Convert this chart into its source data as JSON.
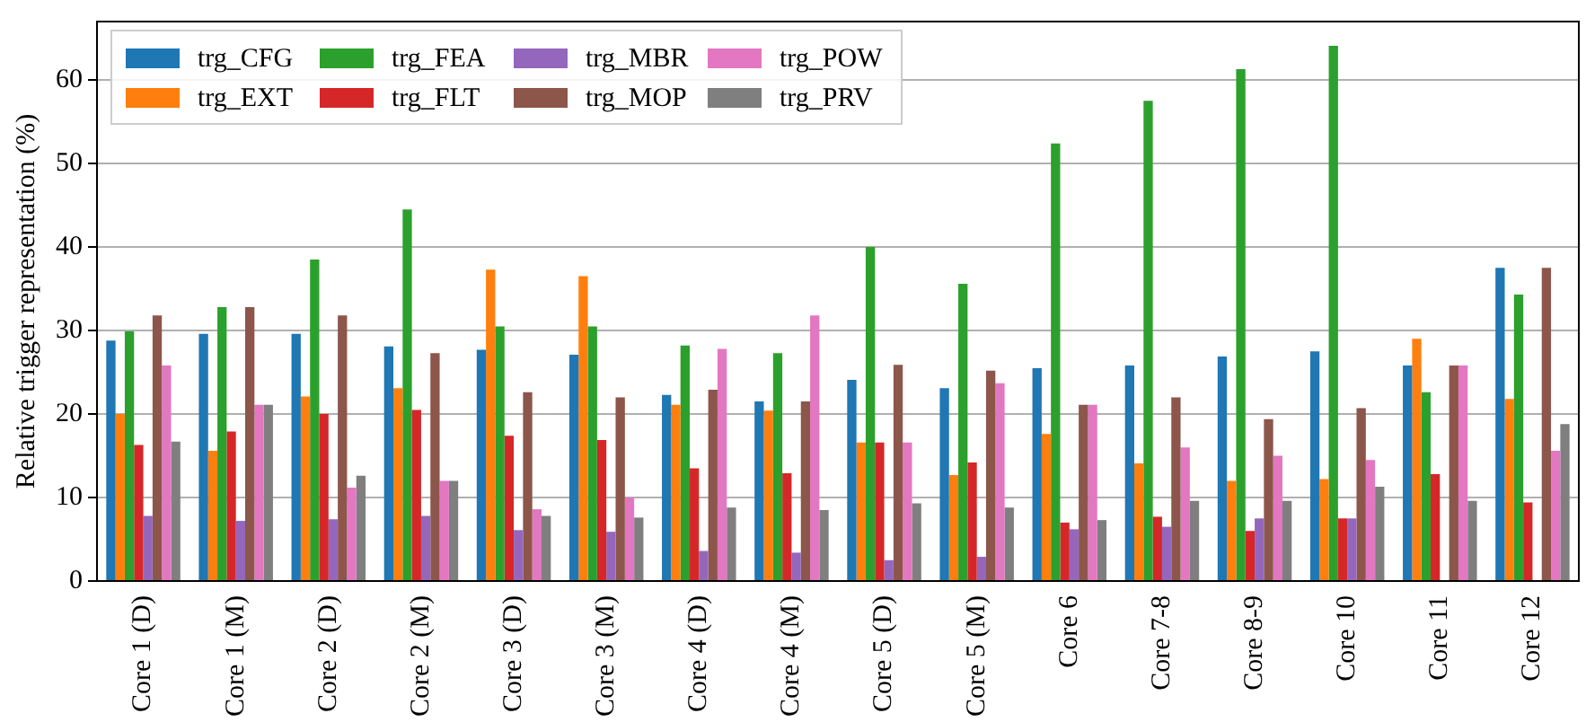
{
  "chart_data": {
    "type": "bar",
    "ylabel": "Relative trigger representation (%)",
    "categories": [
      "Core 1 (D)",
      "Core 1 (M)",
      "Core 2 (D)",
      "Core 2 (M)",
      "Core 3 (D)",
      "Core 3 (M)",
      "Core 4 (D)",
      "Core 4 (M)",
      "Core 5 (D)",
      "Core 5 (M)",
      "Core 6",
      "Core 7-8",
      "Core 8-9",
      "Core 10",
      "Core 11",
      "Core 12"
    ],
    "series": [
      {
        "name": "trg_CFG",
        "color": "#1f77b4",
        "values": [
          28.8,
          29.6,
          29.6,
          28.1,
          27.7,
          27.1,
          22.3,
          21.5,
          24.1,
          23.1,
          25.5,
          25.8,
          26.9,
          27.5,
          25.8,
          37.5
        ]
      },
      {
        "name": "trg_EXT",
        "color": "#ff7f0e",
        "values": [
          20,
          15.6,
          22.1,
          23.1,
          37.3,
          36.5,
          21.1,
          20.4,
          16.6,
          12.7,
          17.6,
          14.1,
          12,
          12.2,
          29,
          21.8
        ]
      },
      {
        "name": "trg_FEA",
        "color": "#2ca02c",
        "values": [
          29.9,
          32.8,
          38.5,
          44.5,
          30.5,
          30.5,
          28.2,
          27.3,
          40,
          35.6,
          52.4,
          57.5,
          61.3,
          64.1,
          22.6,
          34.3
        ]
      },
      {
        "name": "trg_FLT",
        "color": "#d62728",
        "values": [
          16.3,
          17.9,
          20,
          20.5,
          17.4,
          16.9,
          13.5,
          12.9,
          16.6,
          14.2,
          7,
          7.7,
          6,
          7.5,
          12.8,
          9.4
        ]
      },
      {
        "name": "trg_MBR",
        "color": "#9467bd",
        "values": [
          7.8,
          7.2,
          7.4,
          7.8,
          6.1,
          5.9,
          3.6,
          3.4,
          2.5,
          2.9,
          6.2,
          6.5,
          7.5,
          7.5,
          0,
          0
        ]
      },
      {
        "name": "trg_MOP",
        "color": "#8c564b",
        "values": [
          31.8,
          32.8,
          31.8,
          27.3,
          22.6,
          22,
          22.9,
          21.5,
          25.9,
          25.2,
          21.1,
          22,
          19.4,
          20.7,
          25.8,
          37.5
        ]
      },
      {
        "name": "trg_POW",
        "color": "#e377c2",
        "values": [
          25.8,
          21.1,
          11.2,
          12,
          8.6,
          10,
          27.8,
          31.8,
          16.6,
          23.7,
          21.1,
          16,
          15,
          14.5,
          25.8,
          15.6
        ]
      },
      {
        "name": "trg_PRV",
        "color": "#7f7f7f",
        "values": [
          16.7,
          21.1,
          12.6,
          12,
          7.8,
          7.6,
          8.8,
          8.5,
          9.3,
          8.8,
          7.3,
          9.6,
          9.6,
          11.3,
          9.6,
          18.8
        ]
      }
    ],
    "ylim": [
      0,
      67
    ],
    "yticks": [
      0,
      10,
      20,
      30,
      40,
      50,
      60
    ],
    "grid": "y",
    "legend": "top left"
  }
}
